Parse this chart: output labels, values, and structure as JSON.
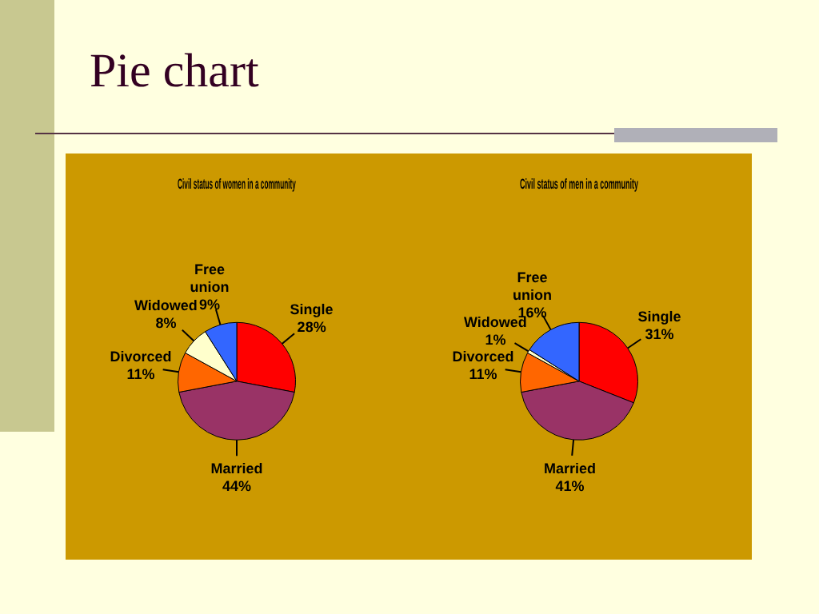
{
  "chart_data": [
    {
      "type": "other",
      "title": "Pie chart"
    },
    {
      "type": "pie",
      "title": "Civil status of women in a community",
      "categories": [
        "Single",
        "Married",
        "Divorced",
        "Widowed",
        "Free union"
      ],
      "values": [
        28,
        44,
        11,
        8,
        9
      ],
      "value_labels": [
        "28%",
        "44%",
        "11%",
        "8%",
        "9%"
      ],
      "colors": [
        "#ff0000",
        "#993366",
        "#ff6600",
        "#ffffcc",
        "#3366ff"
      ],
      "legend": false
    },
    {
      "type": "pie",
      "title": "Civil status of men in a community",
      "categories": [
        "Single",
        "Married",
        "Divorced",
        "Widowed",
        "Free union"
      ],
      "values": [
        31,
        41,
        11,
        1,
        16
      ],
      "value_labels": [
        "31%",
        "41%",
        "11%",
        "1%",
        "16%"
      ],
      "colors": [
        "#ff0000",
        "#993366",
        "#ff6600",
        "#ffffcc",
        "#3366ff"
      ],
      "legend": false
    }
  ]
}
